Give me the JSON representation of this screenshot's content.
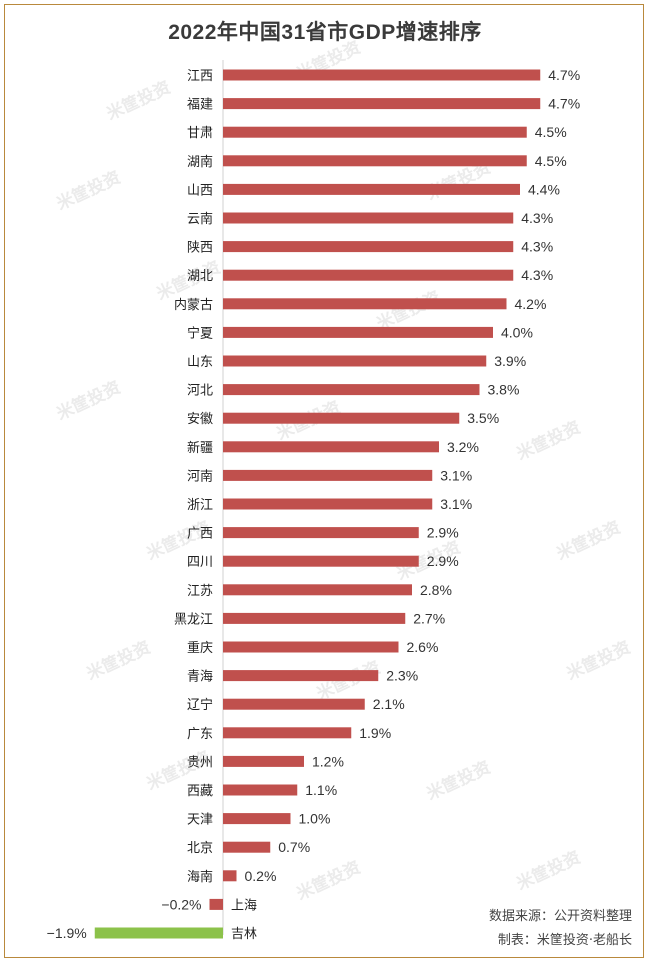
{
  "chart_data": {
    "type": "bar",
    "orientation": "horizontal",
    "title": "2022年中国31省市GDP增速排序",
    "categories": [
      "江西",
      "福建",
      "甘肃",
      "湖南",
      "山西",
      "云南",
      "陕西",
      "湖北",
      "内蒙古",
      "宁夏",
      "山东",
      "河北",
      "安徽",
      "新疆",
      "河南",
      "浙江",
      "广西",
      "四川",
      "江苏",
      "黑龙江",
      "重庆",
      "青海",
      "辽宁",
      "广东",
      "贵州",
      "西藏",
      "天津",
      "北京",
      "海南",
      "上海",
      "吉林"
    ],
    "values": [
      4.7,
      4.7,
      4.5,
      4.5,
      4.4,
      4.3,
      4.3,
      4.3,
      4.2,
      4.0,
      3.9,
      3.8,
      3.5,
      3.2,
      3.1,
      3.1,
      2.9,
      2.9,
      2.8,
      2.7,
      2.6,
      2.3,
      2.1,
      1.9,
      1.2,
      1.1,
      1.0,
      0.7,
      0.2,
      -0.2,
      -1.9
    ],
    "value_labels": [
      "4.7%",
      "4.7%",
      "4.5%",
      "4.5%",
      "4.4%",
      "4.3%",
      "4.3%",
      "4.3%",
      "4.2%",
      "4.0%",
      "3.9%",
      "3.8%",
      "3.5%",
      "3.2%",
      "3.1%",
      "3.1%",
      "2.9%",
      "2.9%",
      "2.8%",
      "2.7%",
      "2.6%",
      "2.3%",
      "2.1%",
      "1.9%",
      "1.2%",
      "1.1%",
      "1.0%",
      "0.7%",
      "0.2%",
      "−0.2%",
      "−1.9%"
    ],
    "unit": "%",
    "bar_color": "#c0504d",
    "highlight_color": "#8cc24a",
    "highlight_category": "吉林",
    "grid": false,
    "legend": "none"
  },
  "notes": {
    "source": "数据来源：公开资料整理",
    "author": "制表：米筐投资·老船长"
  },
  "watermark": {
    "text": "米筐投资"
  }
}
